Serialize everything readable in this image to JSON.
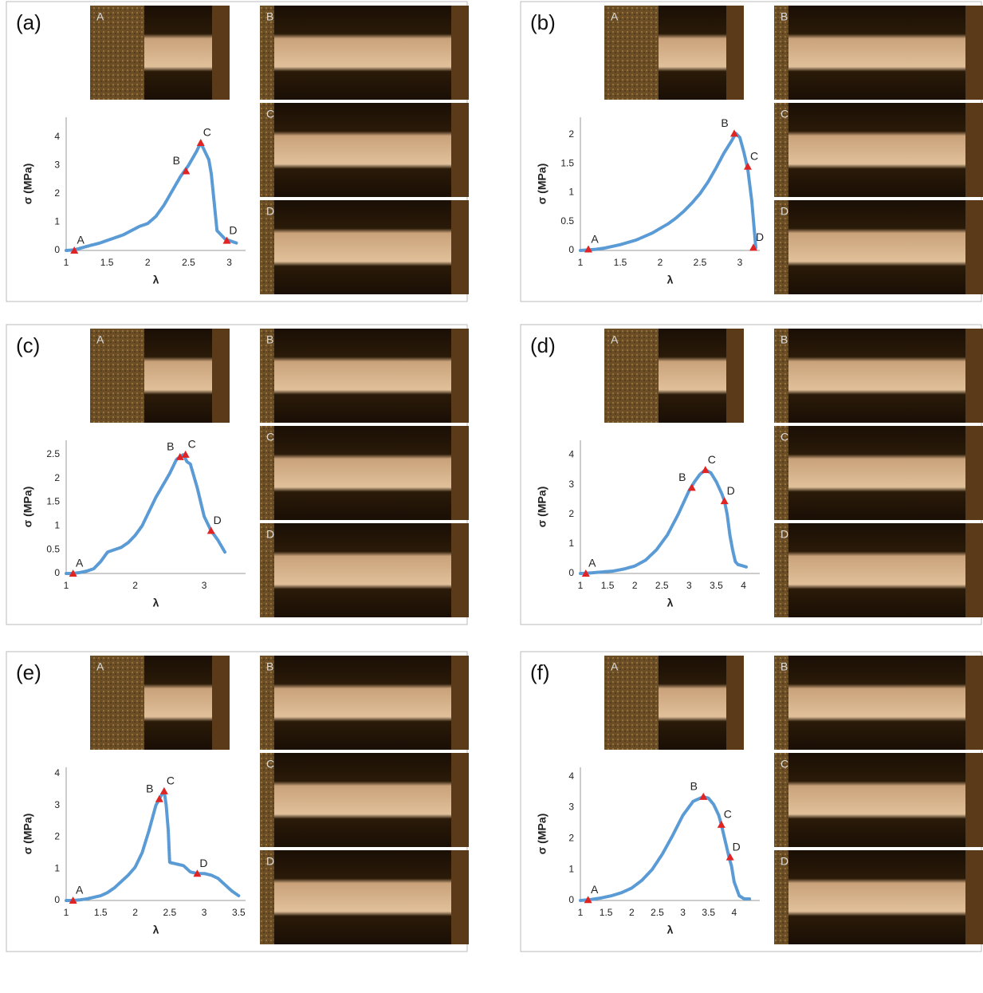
{
  "panels": [
    {
      "label": "(a)",
      "photos": [
        "A",
        "B",
        "C",
        "D"
      ]
    },
    {
      "label": "(b)",
      "photos": [
        "A",
        "B",
        "C",
        "D"
      ]
    },
    {
      "label": "(c)",
      "photos": [
        "A",
        "B",
        "C",
        "D"
      ]
    },
    {
      "label": "(d)",
      "photos": [
        "A",
        "B",
        "C",
        "D"
      ]
    },
    {
      "label": "(e)",
      "photos": [
        "A",
        "B",
        "C",
        "D"
      ]
    },
    {
      "label": "(f)",
      "photos": [
        "A",
        "B",
        "C",
        "D"
      ]
    }
  ],
  "chart_data": [
    {
      "type": "scatter",
      "x_label": "λ",
      "y_label": "σ (MPa)",
      "xlim": [
        1,
        3.2
      ],
      "ylim": [
        0,
        4.7
      ],
      "xticks": [
        1,
        1.5,
        2,
        2.5,
        3
      ],
      "yticks": [
        0,
        1,
        2,
        3,
        4
      ],
      "marker_color": "#e02424",
      "series": [
        {
          "color": "#5b9bd5",
          "x": [
            1,
            1.1,
            1.2,
            1.3,
            1.4,
            1.5,
            1.6,
            1.7,
            1.8,
            1.9,
            2,
            2.1,
            2.2,
            2.3,
            2.4,
            2.5,
            2.6,
            2.65,
            2.7,
            2.75,
            2.78,
            2.85,
            2.9,
            2.95,
            3,
            3.05,
            3.1
          ],
          "values": [
            0,
            0.02,
            0.1,
            0.18,
            0.25,
            0.35,
            0.45,
            0.55,
            0.7,
            0.85,
            0.95,
            1.2,
            1.6,
            2.1,
            2.6,
            3.0,
            3.5,
            3.8,
            3.5,
            3.2,
            2.7,
            0.7,
            0.55,
            0.4,
            0.35,
            0.3,
            0.25
          ]
        }
      ],
      "annotations": [
        {
          "text": "A",
          "x": 1.1,
          "y": 0
        },
        {
          "text": "B",
          "x": 2.47,
          "y": 2.8
        },
        {
          "text": "C",
          "x": 2.65,
          "y": 3.8
        },
        {
          "text": "D",
          "x": 2.97,
          "y": 0.35
        }
      ]
    },
    {
      "type": "scatter",
      "x_label": "λ",
      "y_label": "σ (MPa)",
      "xlim": [
        1,
        3.25
      ],
      "ylim": [
        0,
        2.3
      ],
      "xticks": [
        1,
        1.5,
        2,
        2.5,
        3
      ],
      "yticks": [
        0,
        0.5,
        1,
        1.5,
        2
      ],
      "marker_color": "#e02424",
      "series": [
        {
          "color": "#5b9bd5",
          "x": [
            1,
            1.1,
            1.2,
            1.3,
            1.4,
            1.5,
            1.6,
            1.7,
            1.8,
            1.9,
            2,
            2.1,
            2.2,
            2.3,
            2.4,
            2.5,
            2.6,
            2.7,
            2.8,
            2.9,
            2.95,
            3.0,
            3.05,
            3.1,
            3.15,
            3.2
          ],
          "values": [
            0,
            0.01,
            0.02,
            0.04,
            0.07,
            0.1,
            0.14,
            0.18,
            0.24,
            0.3,
            0.38,
            0.46,
            0.56,
            0.68,
            0.82,
            0.98,
            1.18,
            1.42,
            1.68,
            1.9,
            2.02,
            1.95,
            1.7,
            1.4,
            0.85,
            0.05
          ]
        }
      ],
      "annotations": [
        {
          "text": "A",
          "x": 1.1,
          "y": 0.02
        },
        {
          "text": "B",
          "x": 2.93,
          "y": 2.02
        },
        {
          "text": "C",
          "x": 3.1,
          "y": 1.45
        },
        {
          "text": "D",
          "x": 3.17,
          "y": 0.05
        }
      ]
    },
    {
      "type": "scatter",
      "x_label": "λ",
      "y_label": "σ (MPa)",
      "xlim": [
        1,
        3.6
      ],
      "ylim": [
        0,
        2.8
      ],
      "xticks": [
        1,
        2,
        3
      ],
      "yticks": [
        0,
        0.5,
        1,
        1.5,
        2,
        2.5
      ],
      "marker_color": "#e02424",
      "series": [
        {
          "color": "#5b9bd5",
          "x": [
            1,
            1.1,
            1.2,
            1.3,
            1.4,
            1.5,
            1.6,
            1.7,
            1.8,
            1.9,
            2,
            2.1,
            2.2,
            2.3,
            2.4,
            2.5,
            2.6,
            2.65,
            2.7,
            2.75,
            2.8,
            2.9,
            3,
            3.1,
            3.2,
            3.3
          ],
          "values": [
            0,
            0,
            0.02,
            0.05,
            0.1,
            0.25,
            0.45,
            0.5,
            0.55,
            0.65,
            0.8,
            1.0,
            1.3,
            1.6,
            1.85,
            2.1,
            2.4,
            2.45,
            2.5,
            2.35,
            2.3,
            1.8,
            1.2,
            0.9,
            0.7,
            0.45
          ]
        }
      ],
      "annotations": [
        {
          "text": "A",
          "x": 1.1,
          "y": 0
        },
        {
          "text": "B",
          "x": 2.65,
          "y": 2.45
        },
        {
          "text": "C",
          "x": 2.73,
          "y": 2.5
        },
        {
          "text": "D",
          "x": 3.1,
          "y": 0.9
        }
      ]
    },
    {
      "type": "scatter",
      "x_label": "λ",
      "y_label": "σ (MPa)",
      "xlim": [
        1,
        4.3
      ],
      "ylim": [
        0,
        4.5
      ],
      "xticks": [
        1,
        1.5,
        2,
        2.5,
        3,
        3.5,
        4
      ],
      "yticks": [
        0,
        1,
        2,
        3,
        4
      ],
      "marker_color": "#e02424",
      "series": [
        {
          "color": "#5b9bd5",
          "x": [
            1,
            1.2,
            1.4,
            1.6,
            1.8,
            2,
            2.2,
            2.4,
            2.6,
            2.8,
            3,
            3.1,
            3.2,
            3.3,
            3.4,
            3.5,
            3.6,
            3.65,
            3.7,
            3.75,
            3.8,
            3.85,
            3.9,
            4,
            4.05
          ],
          "values": [
            0,
            0.02,
            0.05,
            0.08,
            0.15,
            0.25,
            0.45,
            0.8,
            1.3,
            2.0,
            2.8,
            3.1,
            3.35,
            3.5,
            3.4,
            3.1,
            2.7,
            2.45,
            2.0,
            1.3,
            0.8,
            0.4,
            0.3,
            0.25,
            0.22
          ]
        }
      ],
      "annotations": [
        {
          "text": "A",
          "x": 1.1,
          "y": 0
        },
        {
          "text": "B",
          "x": 3.05,
          "y": 2.9
        },
        {
          "text": "C",
          "x": 3.3,
          "y": 3.5
        },
        {
          "text": "D",
          "x": 3.65,
          "y": 2.45
        }
      ]
    },
    {
      "type": "scatter",
      "x_label": "λ",
      "y_label": "σ (MPa)",
      "xlim": [
        1,
        3.6
      ],
      "ylim": [
        0,
        4.2
      ],
      "xticks": [
        1,
        1.5,
        2,
        2.5,
        3,
        3.5
      ],
      "yticks": [
        0,
        1,
        2,
        3,
        4
      ],
      "marker_color": "#e02424",
      "series": [
        {
          "color": "#5b9bd5",
          "x": [
            1,
            1.1,
            1.2,
            1.3,
            1.4,
            1.5,
            1.6,
            1.7,
            1.8,
            1.9,
            2,
            2.1,
            2.2,
            2.3,
            2.35,
            2.4,
            2.42,
            2.45,
            2.48,
            2.5,
            2.6,
            2.7,
            2.8,
            2.9,
            3,
            3.1,
            3.2,
            3.3,
            3.4,
            3.5
          ],
          "values": [
            0,
            0,
            0.02,
            0.05,
            0.1,
            0.15,
            0.25,
            0.4,
            0.6,
            0.8,
            1.05,
            1.5,
            2.2,
            3.0,
            3.2,
            3.4,
            3.45,
            3.0,
            2.2,
            1.2,
            1.15,
            1.1,
            0.9,
            0.85,
            0.85,
            0.8,
            0.7,
            0.5,
            0.3,
            0.15
          ]
        }
      ],
      "annotations": [
        {
          "text": "A",
          "x": 1.1,
          "y": 0
        },
        {
          "text": "B",
          "x": 2.35,
          "y": 3.2
        },
        {
          "text": "C",
          "x": 2.42,
          "y": 3.45
        },
        {
          "text": "D",
          "x": 2.9,
          "y": 0.85
        }
      ]
    },
    {
      "type": "scatter",
      "x_label": "λ",
      "y_label": "σ (MPa)",
      "xlim": [
        1,
        4.5
      ],
      "ylim": [
        0,
        4.3
      ],
      "xticks": [
        1,
        1.5,
        2,
        2.5,
        3,
        3.5,
        4
      ],
      "yticks": [
        0,
        1,
        2,
        3,
        4
      ],
      "marker_color": "#e02424",
      "series": [
        {
          "color": "#5b9bd5",
          "x": [
            1,
            1.2,
            1.4,
            1.6,
            1.8,
            2,
            2.2,
            2.4,
            2.6,
            2.8,
            3,
            3.2,
            3.4,
            3.5,
            3.6,
            3.7,
            3.75,
            3.8,
            3.9,
            3.95,
            4,
            4.1,
            4.2,
            4.3
          ],
          "values": [
            0,
            0.03,
            0.08,
            0.15,
            0.25,
            0.4,
            0.65,
            1.0,
            1.5,
            2.1,
            2.75,
            3.2,
            3.35,
            3.3,
            3.1,
            2.75,
            2.45,
            2.1,
            1.4,
            1.1,
            0.6,
            0.15,
            0.05,
            0.05
          ]
        }
      ],
      "annotations": [
        {
          "text": "A",
          "x": 1.15,
          "y": 0.02
        },
        {
          "text": "B",
          "x": 3.4,
          "y": 3.35
        },
        {
          "text": "C",
          "x": 3.75,
          "y": 2.45
        },
        {
          "text": "D",
          "x": 3.92,
          "y": 1.4
        }
      ]
    }
  ]
}
